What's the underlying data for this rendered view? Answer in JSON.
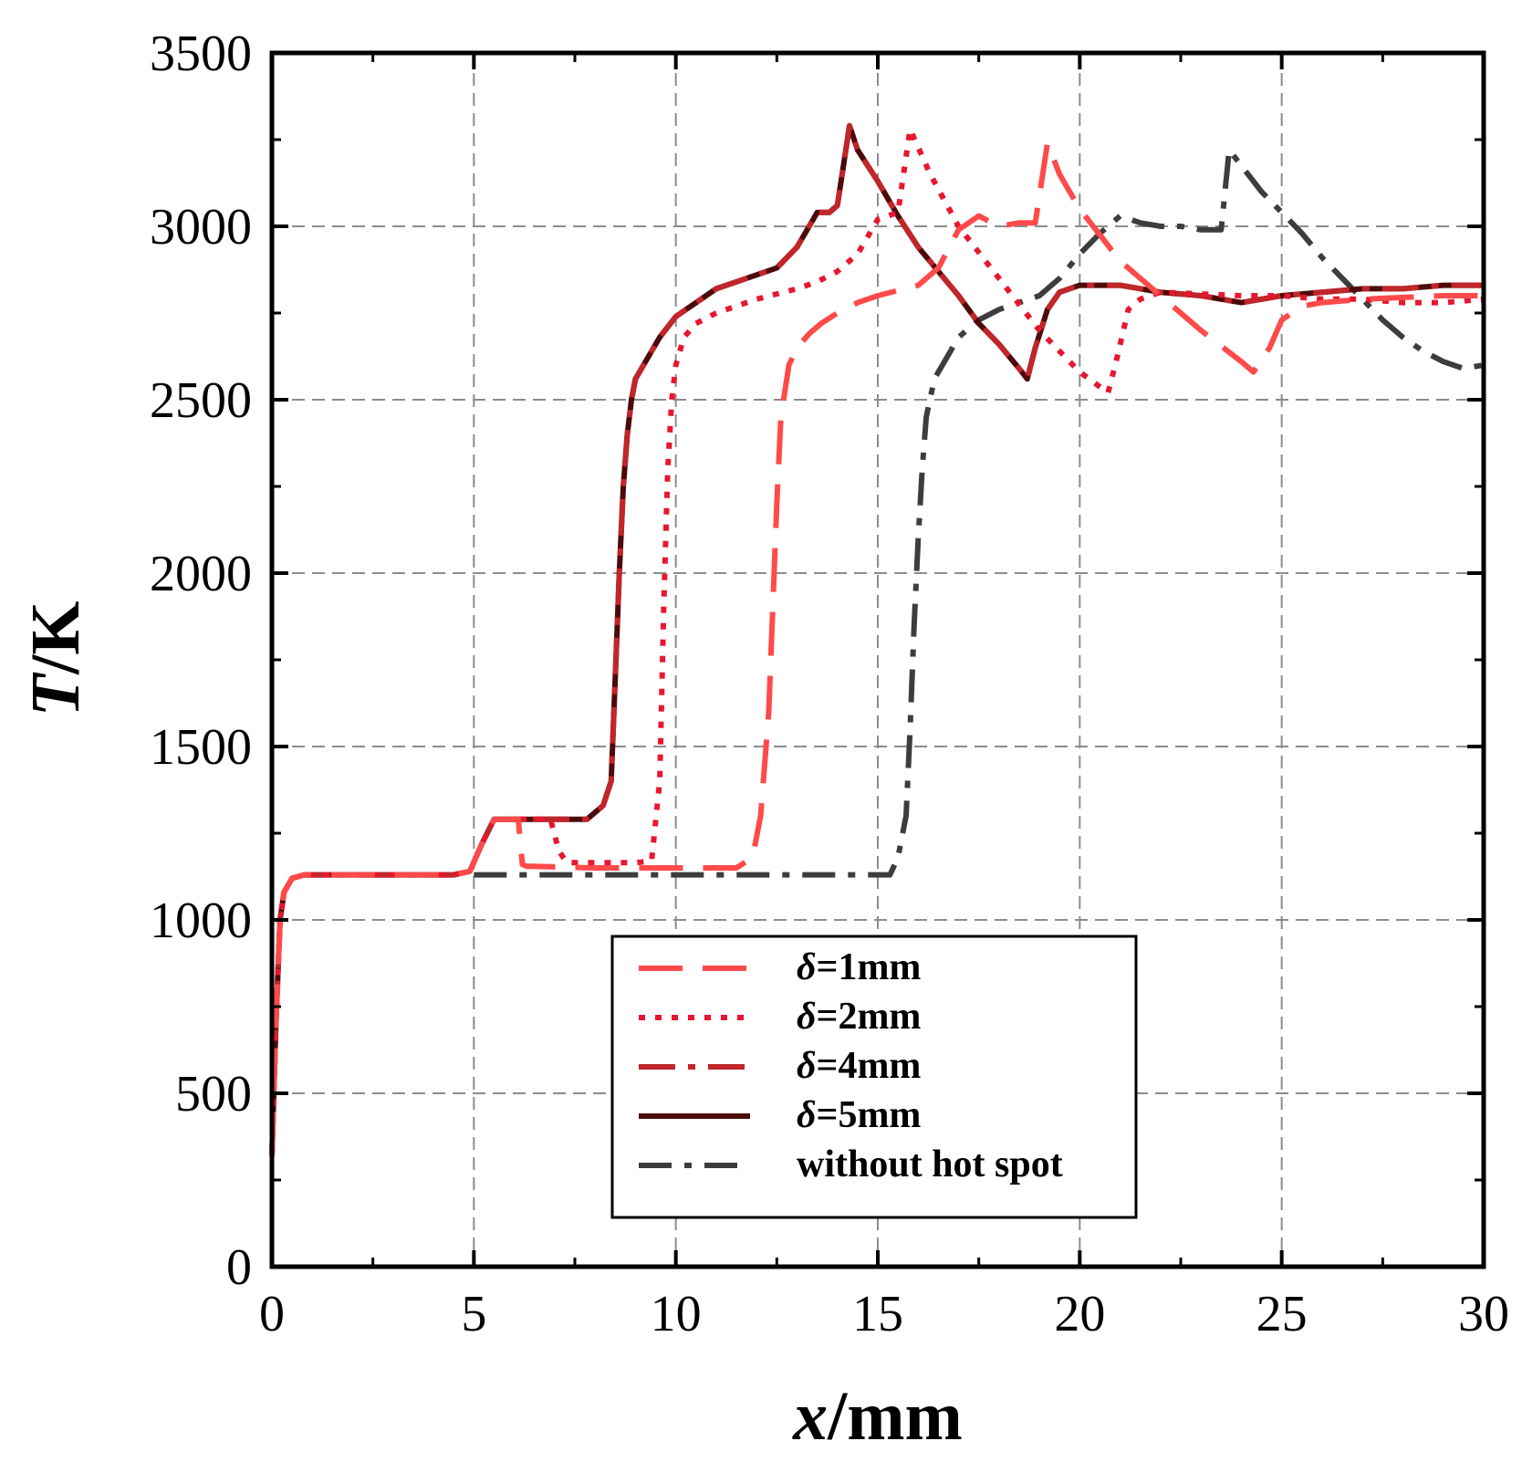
{
  "chart_data": {
    "type": "line",
    "xlabel": {
      "var": "x",
      "unit": "/mm"
    },
    "ylabel": {
      "var": "T",
      "unit": "/K"
    },
    "xlim": [
      0,
      30
    ],
    "ylim": [
      0,
      3500
    ],
    "xticks": [
      0,
      5,
      10,
      15,
      20,
      25,
      30
    ],
    "yticks": [
      0,
      500,
      1000,
      1500,
      2000,
      2500,
      3000,
      3500
    ],
    "grid": true,
    "legend_position": "bottom-center",
    "series": [
      {
        "name": "δ=1mm",
        "legend_label": {
          "symbol": "δ",
          "text": "=1mm"
        },
        "color": "#ff4a4a",
        "dash": "48,22",
        "x": [
          0,
          0.1,
          0.2,
          0.3,
          0.5,
          0.8,
          1.5,
          3,
          4.5,
          4.9,
          5.2,
          5.5,
          6.1,
          6.2,
          6.3,
          8,
          10,
          11.5,
          11.9,
          12.1,
          12.3,
          12.4,
          12.5,
          12.6,
          12.8,
          13,
          13.3,
          13.6,
          14,
          14.5,
          15,
          16,
          16.5,
          17,
          17.5,
          18,
          18.5,
          18.9,
          19.2,
          19.5,
          20,
          21,
          22,
          23,
          24,
          24.3,
          24.7,
          25,
          25.5,
          26,
          27,
          28,
          29,
          30
        ],
        "y": [
          320,
          700,
          1000,
          1080,
          1120,
          1130,
          1130,
          1130,
          1130,
          1140,
          1220,
          1290,
          1290,
          1160,
          1155,
          1150,
          1150,
          1150,
          1180,
          1300,
          1600,
          1900,
          2200,
          2450,
          2600,
          2650,
          2690,
          2720,
          2750,
          2780,
          2800,
          2830,
          2880,
          2990,
          3030,
          3000,
          3010,
          3010,
          3240,
          3150,
          3050,
          2900,
          2800,
          2700,
          2610,
          2580,
          2650,
          2730,
          2770,
          2780,
          2790,
          2795,
          2800,
          2800
        ]
      },
      {
        "name": "δ=2mm",
        "legend_label": {
          "symbol": "δ",
          "text": "=2mm"
        },
        "color": "#e8172f",
        "dash": "7,11",
        "x": [
          0,
          0.1,
          0.2,
          0.3,
          0.5,
          0.8,
          1.5,
          3,
          4.5,
          4.9,
          5.2,
          5.5,
          6.5,
          6.9,
          7.1,
          7.3,
          8,
          9,
          9.4,
          9.6,
          9.7,
          9.8,
          9.9,
          10,
          10.2,
          10.5,
          11,
          12,
          13,
          13.5,
          14,
          14.5,
          15,
          15.5,
          15.8,
          16.3,
          17,
          18,
          19,
          20,
          20.7,
          20.9,
          21.2,
          21.5,
          22,
          23,
          24,
          25,
          26,
          27,
          28,
          29,
          30
        ],
        "y": [
          320,
          700,
          1000,
          1080,
          1120,
          1130,
          1130,
          1130,
          1130,
          1140,
          1220,
          1290,
          1290,
          1290,
          1200,
          1165,
          1165,
          1165,
          1170,
          1400,
          1900,
          2300,
          2500,
          2600,
          2680,
          2720,
          2750,
          2790,
          2820,
          2840,
          2870,
          2920,
          3020,
          3040,
          3280,
          3150,
          3000,
          2850,
          2700,
          2580,
          2520,
          2610,
          2760,
          2790,
          2810,
          2805,
          2800,
          2800,
          2790,
          2790,
          2780,
          2780,
          2790
        ]
      },
      {
        "name": "δ=4mm",
        "legend_label": {
          "symbol": "δ",
          "text": "=4mm"
        },
        "color": "#c0262a",
        "dash": "40,14,8,14",
        "x": [
          0,
          0.1,
          0.2,
          0.3,
          0.5,
          0.8,
          1.5,
          3,
          4.5,
          4.9,
          5.2,
          5.5,
          6,
          7,
          7.8,
          8.2,
          8.4,
          8.5,
          8.6,
          8.7,
          8.8,
          8.9,
          9,
          9.3,
          9.6,
          10,
          10.5,
          11,
          11.5,
          12,
          12.5,
          13,
          13.5,
          13.8,
          14,
          14.3,
          14.5,
          15,
          15.5,
          16,
          17,
          17.5,
          18,
          18.5,
          18.7,
          18.9,
          19.2,
          19.5,
          20,
          21,
          22,
          23,
          24,
          25,
          26,
          27,
          28,
          29,
          30
        ],
        "y": [
          320,
          700,
          1000,
          1080,
          1120,
          1130,
          1130,
          1130,
          1130,
          1140,
          1220,
          1290,
          1290,
          1290,
          1290,
          1330,
          1400,
          1700,
          2000,
          2250,
          2400,
          2500,
          2560,
          2620,
          2680,
          2740,
          2780,
          2820,
          2840,
          2860,
          2880,
          2940,
          3040,
          3040,
          3060,
          3290,
          3220,
          3130,
          3030,
          2940,
          2800,
          2720,
          2660,
          2590,
          2560,
          2650,
          2760,
          2810,
          2830,
          2830,
          2810,
          2800,
          2780,
          2800,
          2810,
          2820,
          2820,
          2830,
          2830
        ]
      },
      {
        "name": "δ=5mm",
        "legend_label": {
          "symbol": "δ",
          "text": "=5mm"
        },
        "color": "#4d0a0a",
        "dash": "",
        "x": [
          0,
          0.1,
          0.2,
          0.3,
          0.5,
          0.8,
          1.5,
          3,
          4.5,
          4.9,
          5.2,
          5.5,
          6,
          7,
          7.8,
          8.2,
          8.4,
          8.5,
          8.6,
          8.7,
          8.8,
          8.9,
          9,
          9.3,
          9.6,
          10,
          10.5,
          11,
          11.5,
          12,
          12.5,
          13,
          13.5,
          13.8,
          14,
          14.3,
          14.5,
          15,
          15.5,
          16,
          17,
          17.5,
          18,
          18.5,
          18.7,
          18.9,
          19.2,
          19.5,
          20,
          21,
          22,
          23,
          24,
          25,
          26,
          27,
          28,
          29,
          30
        ],
        "y": [
          320,
          700,
          1000,
          1080,
          1120,
          1130,
          1130,
          1130,
          1130,
          1140,
          1220,
          1290,
          1290,
          1290,
          1290,
          1330,
          1400,
          1700,
          2000,
          2250,
          2400,
          2500,
          2560,
          2620,
          2680,
          2740,
          2780,
          2820,
          2840,
          2860,
          2880,
          2940,
          3040,
          3040,
          3060,
          3290,
          3220,
          3130,
          3030,
          2940,
          2800,
          2720,
          2660,
          2590,
          2560,
          2650,
          2760,
          2810,
          2830,
          2830,
          2810,
          2800,
          2780,
          2800,
          2810,
          2820,
          2820,
          2830,
          2830
        ]
      },
      {
        "name": "without hot spot",
        "legend_label": {
          "symbol": "",
          "text": "without hot spot"
        },
        "color": "#3d3d3d",
        "dash": "36,14,8,14",
        "x": [
          5,
          8,
          11,
          14,
          15.3,
          15.5,
          15.7,
          15.8,
          15.9,
          16.0,
          16.1,
          16.2,
          16.4,
          16.7,
          17,
          17.5,
          18,
          18.5,
          19,
          19.5,
          20,
          20.5,
          21,
          21.5,
          22,
          22.5,
          23,
          23.5,
          23.7,
          23.9,
          24.5,
          25,
          25.5,
          26,
          26.5,
          27,
          27.5,
          28,
          28.5,
          29,
          29.5,
          30
        ],
        "y": [
          1130,
          1130,
          1130,
          1130,
          1130,
          1180,
          1300,
          1550,
          1850,
          2100,
          2300,
          2450,
          2560,
          2620,
          2680,
          2730,
          2760,
          2780,
          2800,
          2850,
          2920,
          2980,
          3030,
          3010,
          3000,
          3000,
          2990,
          2990,
          3220,
          3190,
          3100,
          3040,
          2980,
          2910,
          2850,
          2790,
          2730,
          2680,
          2640,
          2610,
          2590,
          2600
        ]
      }
    ]
  }
}
